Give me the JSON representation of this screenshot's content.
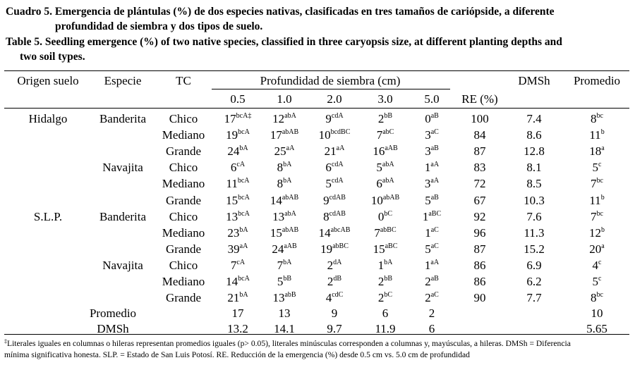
{
  "caption_es": {
    "line1": "Cuadro 5. Emergencia de plántulas (%) de dos especies nativas, clasificadas en tres tamaños de cariópside, a diferente",
    "line2": "profundidad de siembra y dos tipos de suelo."
  },
  "caption_en": {
    "line1": "Table 5. Seedling emergence (%) of two native species, classified in three caryopsis size, at different planting depths and",
    "line2": "two soil types."
  },
  "headers": {
    "origen": "Origen suelo",
    "especie": "Especie",
    "tc": "TC",
    "profundidad": "Profundidad de siembra (cm)",
    "depths": [
      "0.5",
      "1.0",
      "2.0",
      "3.0",
      "5.0"
    ],
    "re": "RE (%)",
    "dmsh": "DMSh",
    "promedio": "Promedio"
  },
  "rows": [
    {
      "origen": "Hidalgo",
      "especie": "Banderita",
      "tc": "Chico",
      "cells": [
        {
          "v": "17",
          "s": "bcA‡"
        },
        {
          "v": "12",
          "s": "abA"
        },
        {
          "v": "9",
          "s": "cdA"
        },
        {
          "v": "2",
          "s": "bB"
        },
        {
          "v": "0",
          "s": "aB"
        }
      ],
      "re": "100",
      "dmsh": "7.4",
      "prom": {
        "v": "8",
        "s": "bc"
      }
    },
    {
      "origen": "",
      "especie": "",
      "tc": "Mediano",
      "cells": [
        {
          "v": "19",
          "s": "bcA"
        },
        {
          "v": "17",
          "s": "abAB"
        },
        {
          "v": "10",
          "s": "bcdBC"
        },
        {
          "v": "7",
          "s": "abC"
        },
        {
          "v": "3",
          "s": "aC"
        }
      ],
      "re": "84",
      "dmsh": "8.6",
      "prom": {
        "v": "11",
        "s": "b"
      }
    },
    {
      "origen": "",
      "especie": "",
      "tc": "Grande",
      "cells": [
        {
          "v": "24",
          "s": "bA"
        },
        {
          "v": "25",
          "s": "aA"
        },
        {
          "v": "21",
          "s": "aA"
        },
        {
          "v": "16",
          "s": "aAB"
        },
        {
          "v": "3",
          "s": "aB"
        }
      ],
      "re": "87",
      "dmsh": "12.8",
      "prom": {
        "v": "18",
        "s": "a"
      }
    },
    {
      "origen": "",
      "especie": "Navajita",
      "tc": "Chico",
      "cells": [
        {
          "v": "6",
          "s": "cA"
        },
        {
          "v": "8",
          "s": "bA"
        },
        {
          "v": "6",
          "s": "cdA"
        },
        {
          "v": "5",
          "s": "abA"
        },
        {
          "v": "1",
          "s": "aA"
        }
      ],
      "re": "83",
      "dmsh": "8.1",
      "prom": {
        "v": "5",
        "s": "c"
      }
    },
    {
      "origen": "",
      "especie": "",
      "tc": "Mediano",
      "cells": [
        {
          "v": "11",
          "s": "bcA"
        },
        {
          "v": "8",
          "s": "bA"
        },
        {
          "v": "5",
          "s": "cdA"
        },
        {
          "v": "6",
          "s": "abA"
        },
        {
          "v": "3",
          "s": "aA"
        }
      ],
      "re": "72",
      "dmsh": "8.5",
      "prom": {
        "v": "7",
        "s": "bc"
      }
    },
    {
      "origen": "",
      "especie": "",
      "tc": "Grande",
      "cells": [
        {
          "v": "15",
          "s": "bcA"
        },
        {
          "v": "14",
          "s": "abAB"
        },
        {
          "v": "9",
          "s": "cdAB"
        },
        {
          "v": "10",
          "s": "abAB"
        },
        {
          "v": "5",
          "s": "aB"
        }
      ],
      "re": "67",
      "dmsh": "10.3",
      "prom": {
        "v": "11",
        "s": "b"
      }
    },
    {
      "origen": "S.L.P.",
      "especie": "Banderita",
      "tc": "Chico",
      "cells": [
        {
          "v": "13",
          "s": "bcA"
        },
        {
          "v": "13",
          "s": "abA"
        },
        {
          "v": "8",
          "s": "cdAB"
        },
        {
          "v": "0",
          "s": "bC"
        },
        {
          "v": "1",
          "s": "aBC"
        }
      ],
      "re": "92",
      "dmsh": "7.6",
      "prom": {
        "v": "7",
        "s": "bc"
      }
    },
    {
      "origen": "",
      "especie": "",
      "tc": "Mediano",
      "cells": [
        {
          "v": "23",
          "s": "bA"
        },
        {
          "v": "15",
          "s": "abAB"
        },
        {
          "v": "14",
          "s": "abcAB"
        },
        {
          "v": "7",
          "s": "abBC"
        },
        {
          "v": "1",
          "s": "aC"
        }
      ],
      "re": "96",
      "dmsh": "11.3",
      "prom": {
        "v": "12",
        "s": "b"
      }
    },
    {
      "origen": "",
      "especie": "",
      "tc": "Grande",
      "cells": [
        {
          "v": "39",
          "s": "aA"
        },
        {
          "v": "24",
          "s": "aAB"
        },
        {
          "v": "19",
          "s": "abBC"
        },
        {
          "v": "15",
          "s": "aBC"
        },
        {
          "v": "5",
          "s": "aC"
        }
      ],
      "re": "87",
      "dmsh": "15.2",
      "prom": {
        "v": "20",
        "s": "a"
      }
    },
    {
      "origen": "",
      "especie": "Navajita",
      "tc": "Chico",
      "cells": [
        {
          "v": "7",
          "s": "cA"
        },
        {
          "v": "7",
          "s": "bA"
        },
        {
          "v": "2",
          "s": "dA"
        },
        {
          "v": "1",
          "s": "bA"
        },
        {
          "v": "1",
          "s": "aA"
        }
      ],
      "re": "86",
      "dmsh": "6.9",
      "prom": {
        "v": "4",
        "s": "c"
      }
    },
    {
      "origen": "",
      "especie": "",
      "tc": "Mediano",
      "cells": [
        {
          "v": "14",
          "s": "bcA"
        },
        {
          "v": "5",
          "s": "bB"
        },
        {
          "v": "2",
          "s": "dB"
        },
        {
          "v": "2",
          "s": "bB"
        },
        {
          "v": "2",
          "s": "aB"
        }
      ],
      "re": "86",
      "dmsh": "6.2",
      "prom": {
        "v": "5",
        "s": "c"
      }
    },
    {
      "origen": "",
      "especie": "",
      "tc": "Grande",
      "cells": [
        {
          "v": "21",
          "s": "bA"
        },
        {
          "v": "13",
          "s": "abB"
        },
        {
          "v": "4",
          "s": "cdC"
        },
        {
          "v": "2",
          "s": "bC"
        },
        {
          "v": "2",
          "s": "aC"
        }
      ],
      "re": "90",
      "dmsh": "7.7",
      "prom": {
        "v": "8",
        "s": "bc"
      }
    }
  ],
  "promedio_row": {
    "label": "Promedio",
    "values": [
      "17",
      "13",
      "9",
      "6",
      "2"
    ],
    "prom": "10"
  },
  "dmsh_row": {
    "label": "DMSh",
    "values": [
      "13.2",
      "14.1",
      "9.7",
      "11.9",
      "6"
    ],
    "prom": "5.65"
  },
  "footnote": {
    "dagger": "‡",
    "line1": "Literales iguales en columnas o hileras representan promedios iguales (p> 0.05), literales minúsculas corresponden a columnas y, mayúsculas, a hileras. DMSh = Diferencia",
    "line2": "mínima significativa honesta. SLP. = Estado de San Luis Potosí. RE. Reducción de la emergencia (%) desde 0.5 cm vs. 5.0 cm de profundidad"
  }
}
